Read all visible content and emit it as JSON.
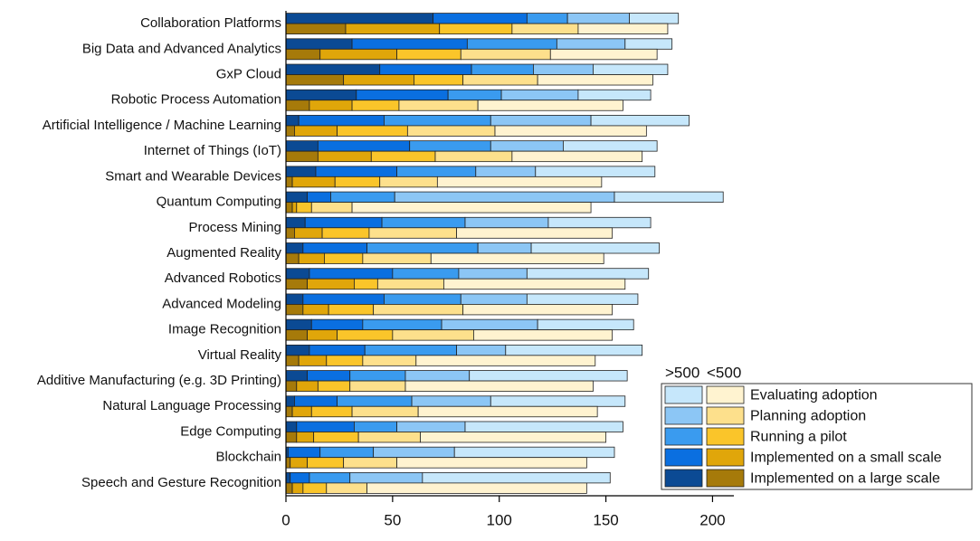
{
  "chart_data": {
    "type": "grouped-stacked-bar",
    "orientation": "horizontal",
    "categories": [
      "Collaboration Platforms",
      "Big Data and Advanced Analytics",
      "GxP Cloud",
      "Robotic Process Automation",
      "Artificial Intelligence / Machine Learning",
      "Internet of Things (IoT)",
      "Smart and Wearable Devices",
      "Quantum Computing",
      "Process Mining",
      "Augmented Reality",
      "Advanced Robotics",
      "Advanced Modeling",
      "Image Recognition",
      "Virtual Reality",
      "Additive Manufacturing (e.g. 3D Printing)",
      "Natural Language Processing",
      "Edge Computing",
      "Blockchain",
      "Speech and Gesture Recognition"
    ],
    "segments": [
      "Implemented on a large scale",
      "Implemented on a small scale",
      "Running a pilot",
      "Planning adoption",
      "Evaluating adoption"
    ],
    "groups": [
      {
        "name": ">500",
        "name_color": "#1a4c9c",
        "colors": [
          "#0b4a94",
          "#0a6fe0",
          "#3a9bef",
          "#8cc6f5",
          "#c6e7fb"
        ],
        "values": [
          [
            69,
            31,
            44,
            33,
            6,
            15,
            14,
            10,
            9,
            8,
            11,
            8,
            12,
            11,
            10,
            4,
            5,
            1,
            2
          ],
          [
            44,
            54,
            43,
            43,
            40,
            43,
            38,
            11,
            36,
            30,
            39,
            38,
            24,
            26,
            20,
            20,
            27,
            15,
            9
          ],
          [
            19,
            42,
            29,
            25,
            50,
            38,
            37,
            30,
            39,
            52,
            31,
            36,
            37,
            43,
            26,
            35,
            20,
            25,
            19
          ],
          [
            29,
            32,
            28,
            36,
            47,
            34,
            28,
            103,
            39,
            25,
            32,
            31,
            45,
            23,
            30,
            37,
            32,
            38,
            34
          ],
          [
            23,
            22,
            35,
            34,
            46,
            44,
            56,
            51,
            48,
            60,
            57,
            52,
            45,
            64,
            74,
            63,
            74,
            75,
            88
          ]
        ]
      },
      {
        "name": "<500",
        "name_color": "#a07a10",
        "colors": [
          "#a67a0a",
          "#e0a60a",
          "#fac52a",
          "#fde08c",
          "#fff3d0"
        ],
        "values": [
          [
            28,
            16,
            27,
            11,
            4,
            15,
            3,
            3,
            4,
            6,
            10,
            8,
            10,
            6,
            5,
            3,
            5,
            2,
            3
          ],
          [
            44,
            36,
            33,
            20,
            20,
            25,
            20,
            2,
            13,
            12,
            22,
            12,
            14,
            13,
            10,
            9,
            8,
            8,
            5
          ],
          [
            34,
            30,
            23,
            22,
            33,
            30,
            21,
            7,
            22,
            18,
            11,
            21,
            26,
            17,
            15,
            19,
            21,
            17,
            11
          ],
          [
            31,
            42,
            35,
            37,
            41,
            36,
            27,
            19,
            41,
            32,
            31,
            42,
            38,
            25,
            26,
            31,
            29,
            25,
            19
          ],
          [
            42,
            50,
            54,
            68,
            71,
            61,
            77,
            112,
            73,
            81,
            85,
            70,
            65,
            84,
            88,
            84,
            87,
            89,
            103
          ]
        ]
      }
    ],
    "xlim": [
      0,
      210
    ],
    "xticks": [
      0,
      50,
      100,
      150,
      200
    ]
  }
}
